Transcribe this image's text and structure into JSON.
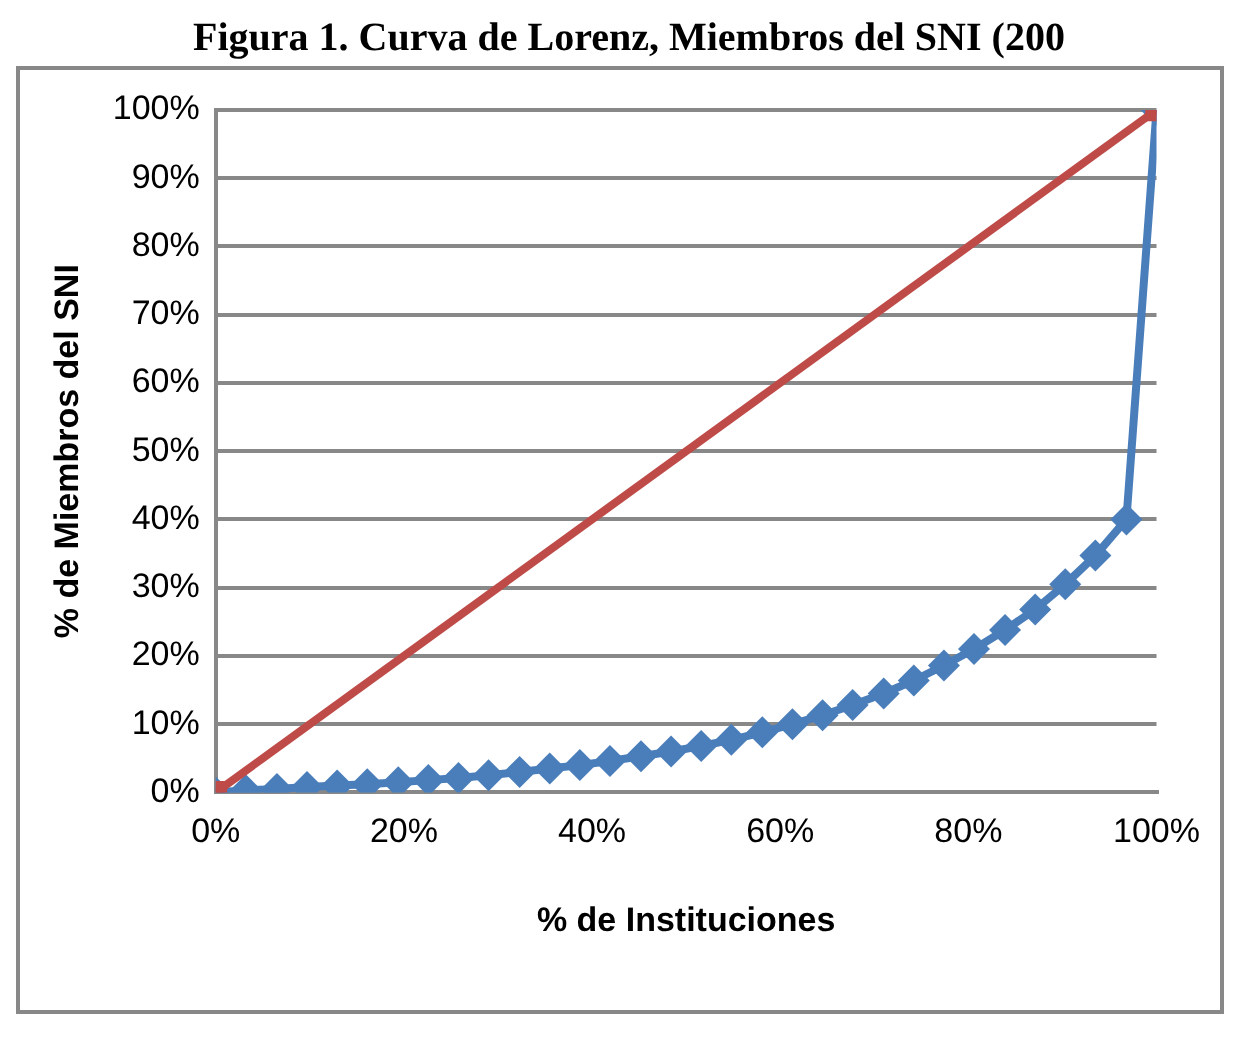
{
  "chart_data": {
    "type": "line",
    "title": "Figura 1. Curva de Lorenz, Miembros del SNI (200",
    "xlabel": "% de Instituciones",
    "ylabel": "% de Miembros del SNI",
    "xlim": [
      0,
      100
    ],
    "ylim": [
      0,
      100
    ],
    "xticks": [
      {
        "value": 0,
        "label": "0%"
      },
      {
        "value": 20,
        "label": "20%"
      },
      {
        "value": 40,
        "label": "40%"
      },
      {
        "value": 60,
        "label": "60%"
      },
      {
        "value": 80,
        "label": "80%"
      },
      {
        "value": 100,
        "label": "100%"
      }
    ],
    "yticks": [
      {
        "value": 0,
        "label": "0%"
      },
      {
        "value": 10,
        "label": "10%"
      },
      {
        "value": 20,
        "label": "20%"
      },
      {
        "value": 30,
        "label": "30%"
      },
      {
        "value": 40,
        "label": "40%"
      },
      {
        "value": 50,
        "label": "50%"
      },
      {
        "value": 60,
        "label": "60%"
      },
      {
        "value": 70,
        "label": "70%"
      },
      {
        "value": 80,
        "label": "80%"
      },
      {
        "value": 90,
        "label": "90%"
      },
      {
        "value": 100,
        "label": "100%"
      }
    ],
    "grid": "y",
    "series": [
      {
        "color": "#4a7ebb",
        "marker": "diamond",
        "x": [
          0,
          3.2,
          6.5,
          9.7,
          12.9,
          16.1,
          19.4,
          22.6,
          25.8,
          29,
          32.3,
          35.5,
          38.7,
          41.9,
          45.2,
          48.4,
          51.6,
          54.8,
          58.1,
          61.3,
          64.5,
          67.7,
          71,
          74.2,
          77.4,
          80.6,
          83.9,
          87.1,
          90.3,
          93.5,
          96.8,
          100
        ],
        "values": [
          0,
          0.3,
          0.5,
          0.8,
          1,
          1.2,
          1.5,
          1.8,
          2.1,
          2.5,
          3,
          3.5,
          4,
          4.6,
          5.3,
          6,
          6.8,
          7.7,
          8.8,
          10,
          11.3,
          12.8,
          14.5,
          16.4,
          18.6,
          21,
          23.8,
          26.8,
          30.5,
          34.7,
          40,
          100
        ]
      },
      {
        "color": "#be4b48",
        "marker": "square",
        "x": [
          0,
          100
        ],
        "values": [
          0,
          100
        ]
      }
    ]
  }
}
